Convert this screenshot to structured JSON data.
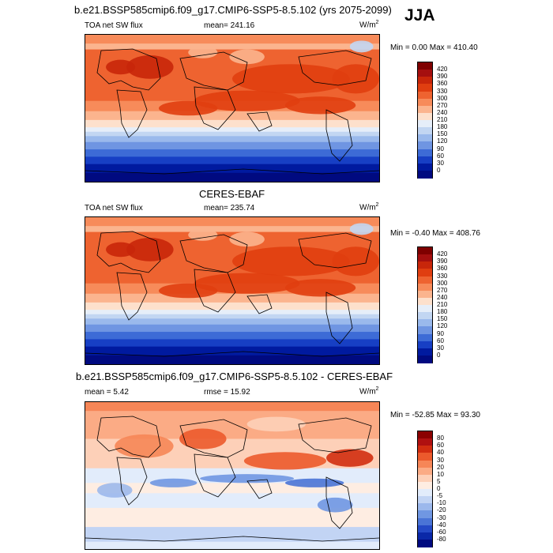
{
  "season": "JJA",
  "panels": [
    {
      "title": "b.e21.BSSP585cmip6.f09_g17.CMIP6-SSP5-8.5.102 (yrs 2075-2099)",
      "left_label": "TOA net SW flux",
      "center_label": "mean= 241.16",
      "units_base": "W/m",
      "units_exp": "2",
      "minmax": "Min =  0.00 Max = 410.40",
      "levels": [
        "420",
        "390",
        "360",
        "330",
        "300",
        "270",
        "240",
        "210",
        "180",
        "150",
        "120",
        "90",
        "60",
        "30",
        "0"
      ],
      "colors": [
        "#7f0000",
        "#a50f0f",
        "#c8260a",
        "#e03e10",
        "#ee6330",
        "#f78b5a",
        "#fbb48e",
        "#fde0cc",
        "#e6eef9",
        "#c2d6f2",
        "#9ab9ec",
        "#6f95e2",
        "#3d6bd6",
        "#173fc4",
        "#001a9f",
        "#000a80"
      ],
      "kind": "abs"
    },
    {
      "title": "CERES-EBAF",
      "left_label": "TOA net SW flux",
      "center_label": "mean= 235.74",
      "units_base": "W/m",
      "units_exp": "2",
      "minmax": "Min =  -0.40 Max = 408.76",
      "levels": [
        "420",
        "390",
        "360",
        "330",
        "300",
        "270",
        "240",
        "210",
        "180",
        "150",
        "120",
        "90",
        "60",
        "30",
        "0"
      ],
      "colors": [
        "#7f0000",
        "#a50f0f",
        "#c8260a",
        "#e03e10",
        "#ee6330",
        "#f78b5a",
        "#fbb48e",
        "#fde0cc",
        "#e6eef9",
        "#c2d6f2",
        "#9ab9ec",
        "#6f95e2",
        "#3d6bd6",
        "#173fc4",
        "#001a9f",
        "#000a80"
      ],
      "kind": "abs"
    },
    {
      "title": "b.e21.BSSP585cmip6.f09_g17.CMIP6-SSP5-8.5.102 - CERES-EBAF",
      "left_label": "mean =   5.42",
      "center_label": "rmse =  15.92",
      "units_base": "W/m",
      "units_exp": "2",
      "minmax": "Min = -52.85 Max =  93.30",
      "levels": [
        "80",
        "60",
        "40",
        "30",
        "20",
        "10",
        "5",
        "0",
        "-5",
        "-10",
        "-20",
        "-30",
        "-40",
        "-60",
        "-80"
      ],
      "colors": [
        "#8b0000",
        "#b01010",
        "#d22d10",
        "#ec5a2c",
        "#f68657",
        "#fbab85",
        "#fdd0b8",
        "#feede2",
        "#e2ecfb",
        "#c2d4f4",
        "#9cb8ec",
        "#7097e2",
        "#4a74d6",
        "#2449c6",
        "#0a28a8",
        "#000a80"
      ],
      "kind": "diff"
    }
  ]
}
